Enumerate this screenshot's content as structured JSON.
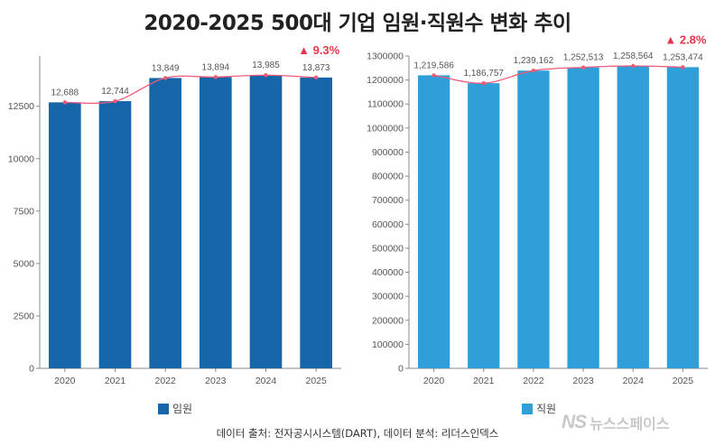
{
  "title": "2020-2025  500대 기업 임원·직원수 변화  추이",
  "source": "데이터 출처: 전자공시시스템(DART), 데이터 분석: 리더스인덱스",
  "watermark": {
    "logo": "NS",
    "text": "뉴스스페이스"
  },
  "colors": {
    "executives": "#1565a8",
    "employees": "#2e9fd8",
    "line": "#f05a78",
    "growth": "#e8344a"
  },
  "chart_data": [
    {
      "type": "bar",
      "categories": [
        "2020",
        "2021",
        "2022",
        "2023",
        "2024",
        "2025"
      ],
      "series": [
        {
          "name": "임원",
          "values": [
            12688,
            12744,
            13849,
            13894,
            13985,
            13873
          ]
        }
      ],
      "data_labels": [
        "12,688",
        "12,744",
        "13,849",
        "13,894",
        "13,985",
        "13,873"
      ],
      "overlay_line": true,
      "yticks": [
        "0",
        "2500",
        "5000",
        "7500",
        "10000",
        "12500"
      ],
      "ylim": [
        0,
        14900
      ],
      "growth_label": "▲ 9.3%",
      "legend": "임원",
      "grid": false
    },
    {
      "type": "bar",
      "categories": [
        "2020",
        "2021",
        "2022",
        "2023",
        "2024",
        "2025"
      ],
      "series": [
        {
          "name": "직원",
          "values": [
            1219586,
            1186757,
            1239162,
            1252513,
            1258564,
            1253474
          ]
        }
      ],
      "data_labels": [
        "1,219,586",
        "1,186,757",
        "1,239,162",
        "1,252,513",
        "1,258,564",
        "1,253,474"
      ],
      "overlay_line": true,
      "yticks": [
        "0",
        "100000",
        "200000",
        "300000",
        "400000",
        "500000",
        "600000",
        "700000",
        "800000",
        "900000",
        "1000000",
        "1100000",
        "1200000",
        "1300000"
      ],
      "ylim": [
        0,
        1300000
      ],
      "growth_label": "▲ 2.8%",
      "legend": "직원",
      "grid": false
    }
  ]
}
